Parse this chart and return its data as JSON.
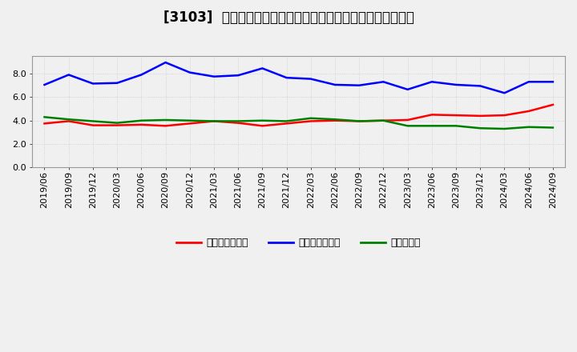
{
  "title": "[3103]  売上債権回転率、買入債務回転率、在庫回転率の推移",
  "dates": [
    "2019/06",
    "2019/09",
    "2019/12",
    "2020/03",
    "2020/06",
    "2020/09",
    "2020/12",
    "2021/03",
    "2021/06",
    "2021/09",
    "2021/12",
    "2022/03",
    "2022/06",
    "2022/09",
    "2022/12",
    "2023/03",
    "2023/06",
    "2023/09",
    "2023/12",
    "2024/03",
    "2024/06",
    "2024/09"
  ],
  "receivables": [
    3.75,
    3.95,
    3.6,
    3.6,
    3.65,
    3.55,
    3.75,
    3.95,
    3.8,
    3.55,
    3.75,
    3.95,
    4.0,
    3.95,
    4.0,
    4.05,
    4.5,
    4.45,
    4.4,
    4.45,
    4.8,
    5.35
  ],
  "payables": [
    7.05,
    7.9,
    7.15,
    7.2,
    7.9,
    8.95,
    8.1,
    7.75,
    7.85,
    8.45,
    7.65,
    7.55,
    7.05,
    7.0,
    7.3,
    6.65,
    7.3,
    7.05,
    6.95,
    6.35,
    7.3,
    7.3
  ],
  "inventory": [
    4.3,
    4.1,
    3.95,
    3.8,
    4.0,
    4.05,
    4.0,
    3.95,
    3.95,
    4.0,
    3.95,
    4.2,
    4.1,
    3.95,
    4.0,
    3.55,
    3.55,
    3.55,
    3.35,
    3.3,
    3.45,
    3.4
  ],
  "receivables_color": "#ff0000",
  "payables_color": "#0000ff",
  "inventory_color": "#008000",
  "background_color": "#f0f0f0",
  "plot_bg_color": "#f0f0f0",
  "grid_color": "#cccccc",
  "ylim": [
    0.0,
    9.5
  ],
  "yticks": [
    0.0,
    2.0,
    4.0,
    6.0,
    8.0
  ],
  "legend_labels": [
    "売上債権回転率",
    "買入債務回転率",
    "在庫回転率"
  ],
  "title_fontsize": 12,
  "axis_fontsize": 8,
  "legend_fontsize": 9
}
